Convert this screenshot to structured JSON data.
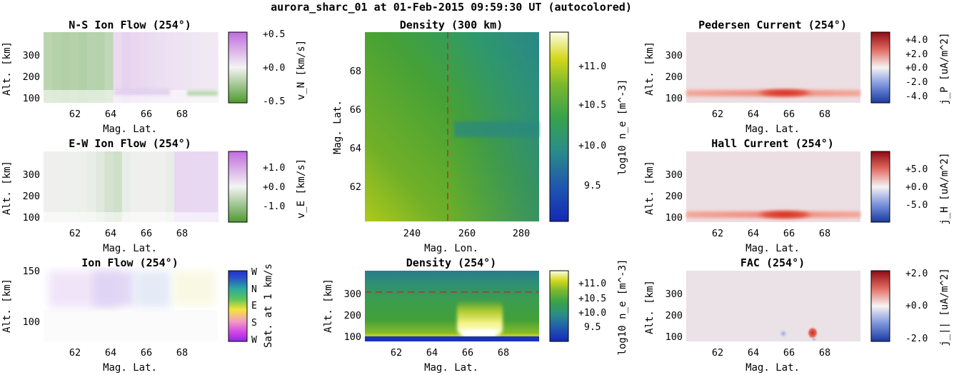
{
  "figure": {
    "title": "aurora_sharc_01 at 01-Feb-2015 09:59:30 UT (autocolored)"
  },
  "colors": {
    "green": "#56a03a",
    "purple": "#c47ae6",
    "red": "#c0281e",
    "blue": "#2a50c8",
    "pale": "#ecdfe3"
  },
  "chart_data": [
    {
      "id": "ns_flow",
      "type": "heatmap",
      "title": "N-S Ion Flow (254°)",
      "xlabel": "Mag. Lat.",
      "ylabel": "Alt. [km]",
      "xlim": [
        60.3,
        70.0
      ],
      "ylim": [
        80,
        395
      ],
      "xticks": [
        "62",
        "64",
        "66",
        "68"
      ],
      "yticks": [
        "100",
        "200",
        "300"
      ],
      "colorbar": {
        "label": "v_N [km/s]",
        "ticks": [
          "+0.5",
          "+0.0",
          "-0.5"
        ],
        "range": [
          -0.6,
          0.6
        ],
        "colormap": "green-white-purple"
      },
      "values_km_s": [
        -0.22,
        -0.24,
        -0.25,
        -0.24,
        -0.25,
        -0.23,
        -0.24,
        -0.2,
        0.12,
        0.16,
        0.14,
        0.13,
        0.11,
        0.1,
        0.09,
        0.08,
        0.07,
        0.06,
        0.05,
        0.05
      ]
    },
    {
      "id": "ew_flow",
      "type": "heatmap",
      "title": "E-W Ion Flow (254°)",
      "xlabel": "Mag. Lat.",
      "ylabel": "Alt. [km]",
      "xlim": [
        60.3,
        70.0
      ],
      "ylim": [
        80,
        395
      ],
      "xticks": [
        "62",
        "64",
        "66",
        "68"
      ],
      "yticks": [
        "100",
        "200",
        "300"
      ],
      "colorbar": {
        "label": "v_E [km/s]",
        "ticks": [
          "+1.0",
          "+0.0",
          "-1.0"
        ],
        "range": [
          -1.5,
          1.5
        ],
        "colormap": "green-white-purple"
      },
      "values_km_s": [
        -0.05,
        -0.05,
        -0.06,
        -0.06,
        -0.08,
        -0.1,
        -0.18,
        -0.3,
        -0.35,
        -0.1,
        -0.05,
        -0.05,
        -0.05,
        -0.05,
        -0.1,
        0.35,
        0.35,
        0.33,
        0.33,
        0.33
      ]
    },
    {
      "id": "ion_flow",
      "type": "heatmap",
      "title": "Ion Flow (254°)",
      "xlabel": "Mag. Lat.",
      "ylabel": "Alt. [km]",
      "xlim": [
        60.3,
        70.0
      ],
      "ylim": [
        80,
        150
      ],
      "xticks": [
        "62",
        "64",
        "66",
        "68"
      ],
      "yticks": [
        "100",
        "150"
      ],
      "colorbar": {
        "label": "Sat. at 1 km/s",
        "ticks": [
          "W",
          "N",
          "E",
          "S",
          "W"
        ],
        "colormap": "direction"
      }
    },
    {
      "id": "density_map",
      "type": "heatmap",
      "title": "Density (300 km)",
      "xlabel": "Mag. Lon.",
      "ylabel": "Mag. Lat.",
      "xlim": [
        225,
        286
      ],
      "ylim": [
        60.2,
        69.9
      ],
      "xticks": [
        "240",
        "260",
        "280"
      ],
      "yticks": [
        "62",
        "64",
        "66",
        "68"
      ],
      "colorbar": {
        "label": "log10 n_e [m^-3]",
        "ticks": [
          "+11.0",
          "+10.5",
          "+10.0",
          "9.5"
        ],
        "range": [
          9.05,
          11.45
        ],
        "colormap": "viridis-like"
      },
      "cut_longitude": 254
    },
    {
      "id": "density_profile",
      "type": "heatmap",
      "title": "Density (254°)",
      "xlabel": "Mag. Lat.",
      "ylabel": "Alt. [km]",
      "xlim": [
        60.3,
        70.0
      ],
      "ylim": [
        80,
        395
      ],
      "xticks": [
        "62",
        "64",
        "66",
        "68"
      ],
      "yticks": [
        "100",
        "200",
        "300"
      ],
      "colorbar": {
        "label": "log10 n_e [m^-3]",
        "ticks": [
          "+11.0",
          "+10.5",
          "+10.0",
          "9.5"
        ],
        "range": [
          9.05,
          11.45
        ],
        "colormap": "viridis-like"
      },
      "cut_altitude": 300
    },
    {
      "id": "pedersen",
      "type": "heatmap",
      "title": "Pedersen Current (254°)",
      "xlabel": "Mag. Lat.",
      "ylabel": "Alt. [km]",
      "xlim": [
        60.3,
        70.0
      ],
      "ylim": [
        80,
        395
      ],
      "xticks": [
        "62",
        "64",
        "66",
        "68"
      ],
      "yticks": [
        "100",
        "200",
        "300"
      ],
      "colorbar": {
        "label": "j_P [uA/m^2]",
        "ticks": [
          "+4.0",
          "+2.0",
          "+0.0",
          "-2.0",
          "-4.0"
        ],
        "range": [
          -5,
          5
        ],
        "colormap": "blue-white-red"
      },
      "band_altitude_km": 120
    },
    {
      "id": "hall",
      "type": "heatmap",
      "title": "Hall Current (254°)",
      "xlabel": "Mag. Lat.",
      "ylabel": "Alt. [km]",
      "xlim": [
        60.3,
        70.0
      ],
      "ylim": [
        80,
        395
      ],
      "xticks": [
        "62",
        "64",
        "66",
        "68"
      ],
      "yticks": [
        "100",
        "200",
        "300"
      ],
      "colorbar": {
        "label": "j_H [uA/m^2]",
        "ticks": [
          "+5.0",
          "+0.0",
          "-5.0"
        ],
        "range": [
          -9,
          9
        ],
        "colormap": "blue-white-red"
      },
      "band_altitude_km": 110
    },
    {
      "id": "fac",
      "type": "heatmap",
      "title": "FAC (254°)",
      "xlabel": "Mag. Lat.",
      "ylabel": "Alt. [km]",
      "xlim": [
        60.3,
        70.0
      ],
      "ylim": [
        80,
        395
      ],
      "xticks": [
        "62",
        "64",
        "66",
        "68"
      ],
      "yticks": [
        "100",
        "200",
        "300"
      ],
      "colorbar": {
        "label": "j_|| [uA/m^2]",
        "ticks": [
          "+2.0",
          "+0.0",
          "-2.0"
        ],
        "range": [
          -2.4,
          2.4
        ],
        "colormap": "blue-white-red"
      }
    }
  ]
}
